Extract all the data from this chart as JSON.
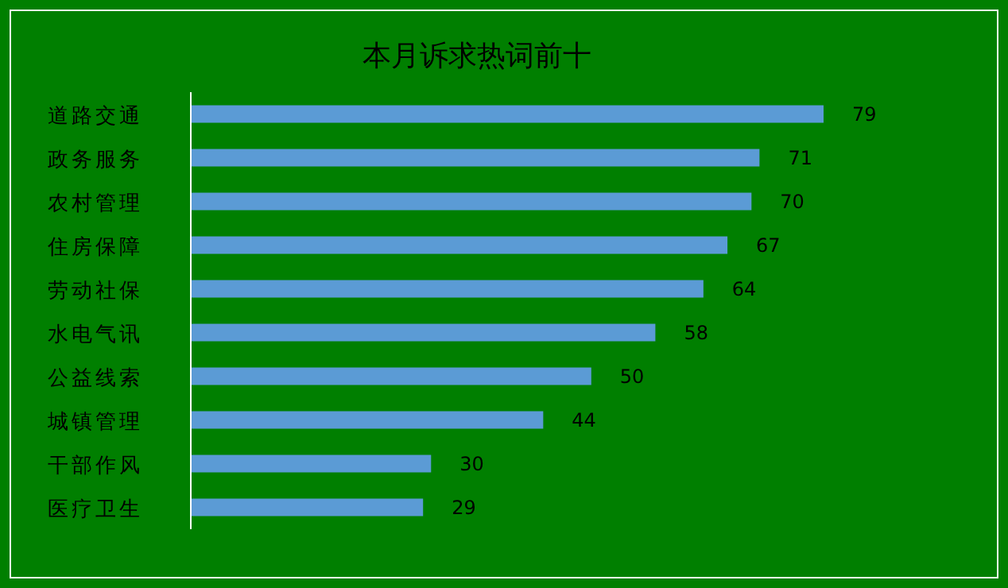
{
  "chart_data": {
    "type": "bar",
    "orientation": "horizontal",
    "title": "本月诉求热词前十",
    "categories": [
      "道路交通",
      "政务服务",
      "农村管理",
      "住房保障",
      "劳动社保",
      "水电气讯",
      "公益线索",
      "城镇管理",
      "干部作风",
      "医疗卫生"
    ],
    "values": [
      79,
      71,
      70,
      67,
      64,
      58,
      50,
      44,
      30,
      29
    ],
    "color": "#5b9bd5",
    "data_labels": true,
    "tick_labels": "y"
  }
}
